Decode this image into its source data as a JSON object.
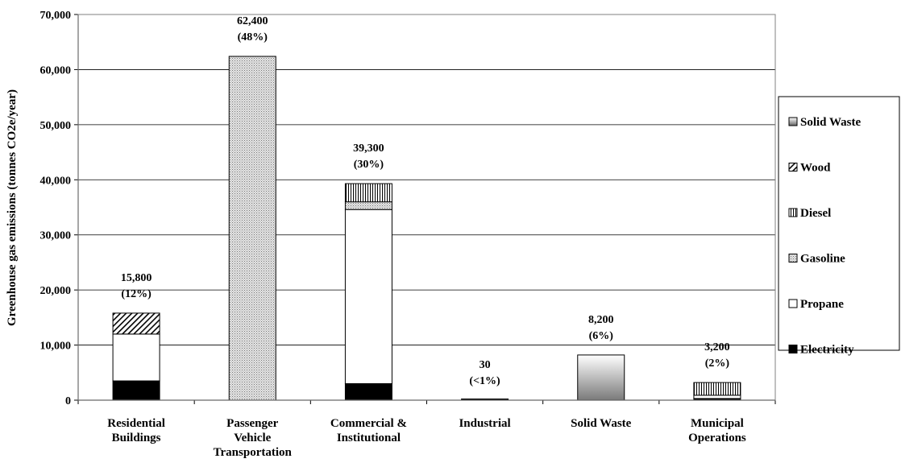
{
  "chart_data": {
    "type": "bar",
    "stacked": true,
    "ylabel": "Greenhouse gas emissions (tonnes CO2e/year)",
    "ylim": [
      0,
      70000
    ],
    "yticks": [
      0,
      10000,
      20000,
      30000,
      40000,
      50000,
      60000,
      70000
    ],
    "ytick_labels": [
      "0",
      "10,000",
      "20,000",
      "30,000",
      "40,000",
      "50,000",
      "60,000",
      "70,000"
    ],
    "grid": true,
    "legend_position": "right",
    "categories": [
      [
        "Residential",
        "Buildings"
      ],
      [
        "Passenger",
        "Vehicle",
        "Transportation"
      ],
      [
        "Commercial &",
        "Institutional"
      ],
      [
        "Industrial"
      ],
      [
        "Solid Waste"
      ],
      [
        "Municipal",
        "Operations"
      ]
    ],
    "series": [
      {
        "name": "Electricity",
        "color": "#000000",
        "pattern": "solid",
        "values": [
          3500,
          0,
          3000,
          30,
          0,
          300
        ]
      },
      {
        "name": "Propane",
        "color": "#ffffff",
        "pattern": "none",
        "values": [
          8500,
          0,
          31600,
          0,
          0,
          600
        ]
      },
      {
        "name": "Gasoline",
        "color": "#d0d0d0",
        "pattern": "dots",
        "values": [
          0,
          62400,
          1400,
          0,
          0,
          0
        ]
      },
      {
        "name": "Diesel",
        "color": "#ffffff",
        "pattern": "vertical",
        "values": [
          0,
          0,
          3300,
          0,
          0,
          2300
        ]
      },
      {
        "name": "Wood",
        "color": "#ffffff",
        "pattern": "diagonal",
        "values": [
          3800,
          0,
          0,
          0,
          0,
          0
        ]
      },
      {
        "name": "Solid Waste",
        "color": "#808080",
        "pattern": "gradient",
        "values": [
          0,
          0,
          0,
          0,
          8200,
          0
        ]
      }
    ],
    "totals": [
      15800,
      62400,
      39300,
      30,
      8200,
      3200
    ],
    "data_labels": [
      [
        "15,800",
        "(12%)"
      ],
      [
        "62,400",
        "(48%)"
      ],
      [
        "39,300",
        "(30%)"
      ],
      [
        "30",
        "(<1%)"
      ],
      [
        "8,200",
        "(6%)"
      ],
      [
        "3,200",
        "(2%)"
      ]
    ],
    "legend_order": [
      "Solid Waste",
      "Wood",
      "Diesel",
      "Gasoline",
      "Propane",
      "Electricity"
    ]
  }
}
